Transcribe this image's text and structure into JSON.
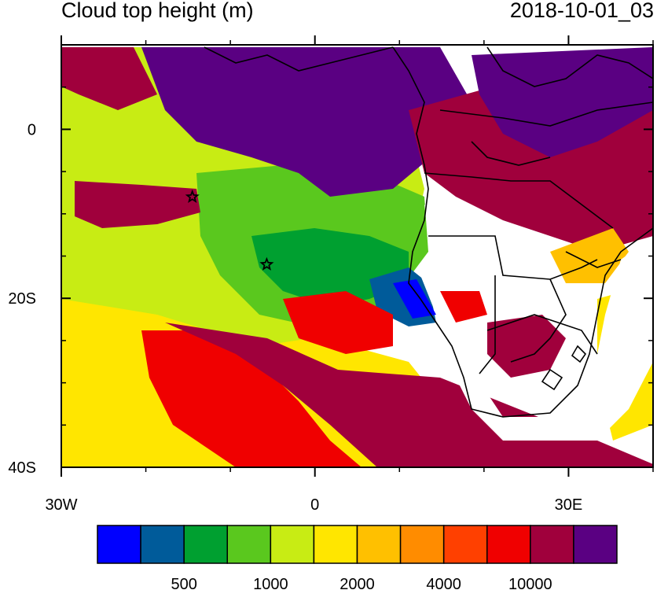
{
  "title": "Cloud top height (m)",
  "timestamp": "2018-10-01_03",
  "y_axis": {
    "ticks": [
      {
        "label": "0",
        "lat": 0
      },
      {
        "label": "20S",
        "lat": -20
      },
      {
        "label": "40S",
        "lat": -40
      }
    ],
    "minor_lats": [
      10,
      5,
      -5,
      -10,
      -15,
      -25,
      -30,
      -35
    ],
    "range": [
      10,
      -40
    ]
  },
  "x_axis": {
    "ticks": [
      {
        "label": "30W",
        "lon": -30
      },
      {
        "label": "0",
        "lon": 0
      },
      {
        "label": "30E",
        "lon": 30
      }
    ],
    "minor_lons": [
      -20,
      -10,
      10,
      20,
      40
    ],
    "range": [
      -30,
      40
    ]
  },
  "colorbar": {
    "colors": [
      "#0000ff",
      "#005b9a",
      "#00a030",
      "#5ac81e",
      "#c8ec14",
      "#ffe600",
      "#ffc000",
      "#ff8c00",
      "#ff4000",
      "#f00000",
      "#a0003c",
      "#5a0082"
    ],
    "labels": [
      {
        "text": "500",
        "boundary": 2
      },
      {
        "text": "1000",
        "boundary": 4
      },
      {
        "text": "2000",
        "boundary": 6
      },
      {
        "text": "4000",
        "boundary": 8
      },
      {
        "text": "10000",
        "boundary": 10
      }
    ]
  },
  "markers": [
    {
      "name": "star-marker-north",
      "lon": -14.5,
      "lat": -8
    },
    {
      "name": "star-marker-south",
      "lon": -5.7,
      "lat": -16
    }
  ]
}
